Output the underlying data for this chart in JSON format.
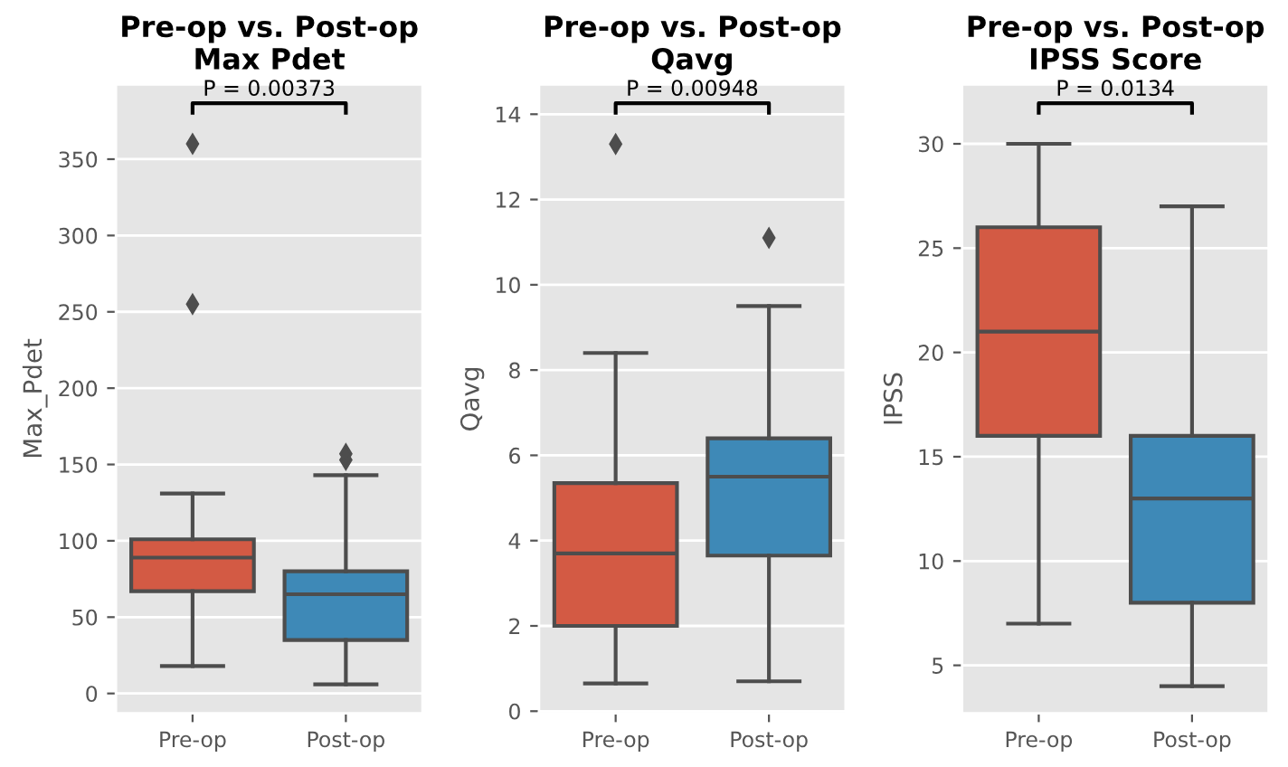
{
  "chart_data": [
    {
      "type": "box",
      "title": "Pre-op vs. Post-op\nMax Pdet",
      "ylabel": "Max_Pdet",
      "categories": [
        "Pre-op",
        "Post-op"
      ],
      "colors": [
        "#d35a44",
        "#3e89b7"
      ],
      "boxes": [
        {
          "low": 18,
          "q1": 67,
          "median": 89,
          "q3": 101,
          "high": 131,
          "outliers": [
            255,
            360
          ]
        },
        {
          "low": 6,
          "q1": 35,
          "median": 65,
          "q3": 80,
          "high": 143,
          "outliers": [
            153,
            157
          ]
        }
      ],
      "ylim": [
        -13,
        399
      ],
      "yticks": [
        0,
        50,
        100,
        150,
        200,
        250,
        300,
        350
      ],
      "grid": "y",
      "marker": "diamond",
      "annotations": [
        "P = 0.00373"
      ]
    },
    {
      "type": "box",
      "title": "Pre-op vs. Post-op\nQavg",
      "ylabel": "Qavg",
      "categories": [
        "Pre-op",
        "Post-op"
      ],
      "colors": [
        "#d35a44",
        "#3e89b7"
      ],
      "boxes": [
        {
          "low": 0.65,
          "q1": 2.0,
          "median": 3.7,
          "q3": 5.35,
          "high": 8.4,
          "outliers": [
            13.3
          ]
        },
        {
          "low": 0.7,
          "q1": 3.65,
          "median": 5.5,
          "q3": 6.4,
          "high": 9.5,
          "outliers": [
            11.1
          ]
        }
      ],
      "ylim": [
        -0.05,
        14.7
      ],
      "yticks": [
        0,
        2,
        4,
        6,
        8,
        10,
        12,
        14
      ],
      "grid": "y",
      "marker": "diamond",
      "annotations": [
        "P = 0.00948"
      ]
    },
    {
      "type": "box",
      "title": "Pre-op vs. Post-op\nIPSS Score",
      "ylabel": "IPSS",
      "categories": [
        "Pre-op",
        "Post-op"
      ],
      "colors": [
        "#d35a44",
        "#3e89b7"
      ],
      "boxes": [
        {
          "low": 7,
          "q1": 16,
          "median": 21,
          "q3": 26,
          "high": 30
        },
        {
          "low": 4,
          "q1": 8,
          "median": 13,
          "q3": 16,
          "high": 27
        }
      ],
      "ylim": [
        2.7,
        32.85
      ],
      "yticks": [
        5,
        10,
        15,
        20,
        25,
        30
      ],
      "grid": "y",
      "marker": "diamond",
      "annotations": [
        "P = 0.0134"
      ]
    }
  ]
}
